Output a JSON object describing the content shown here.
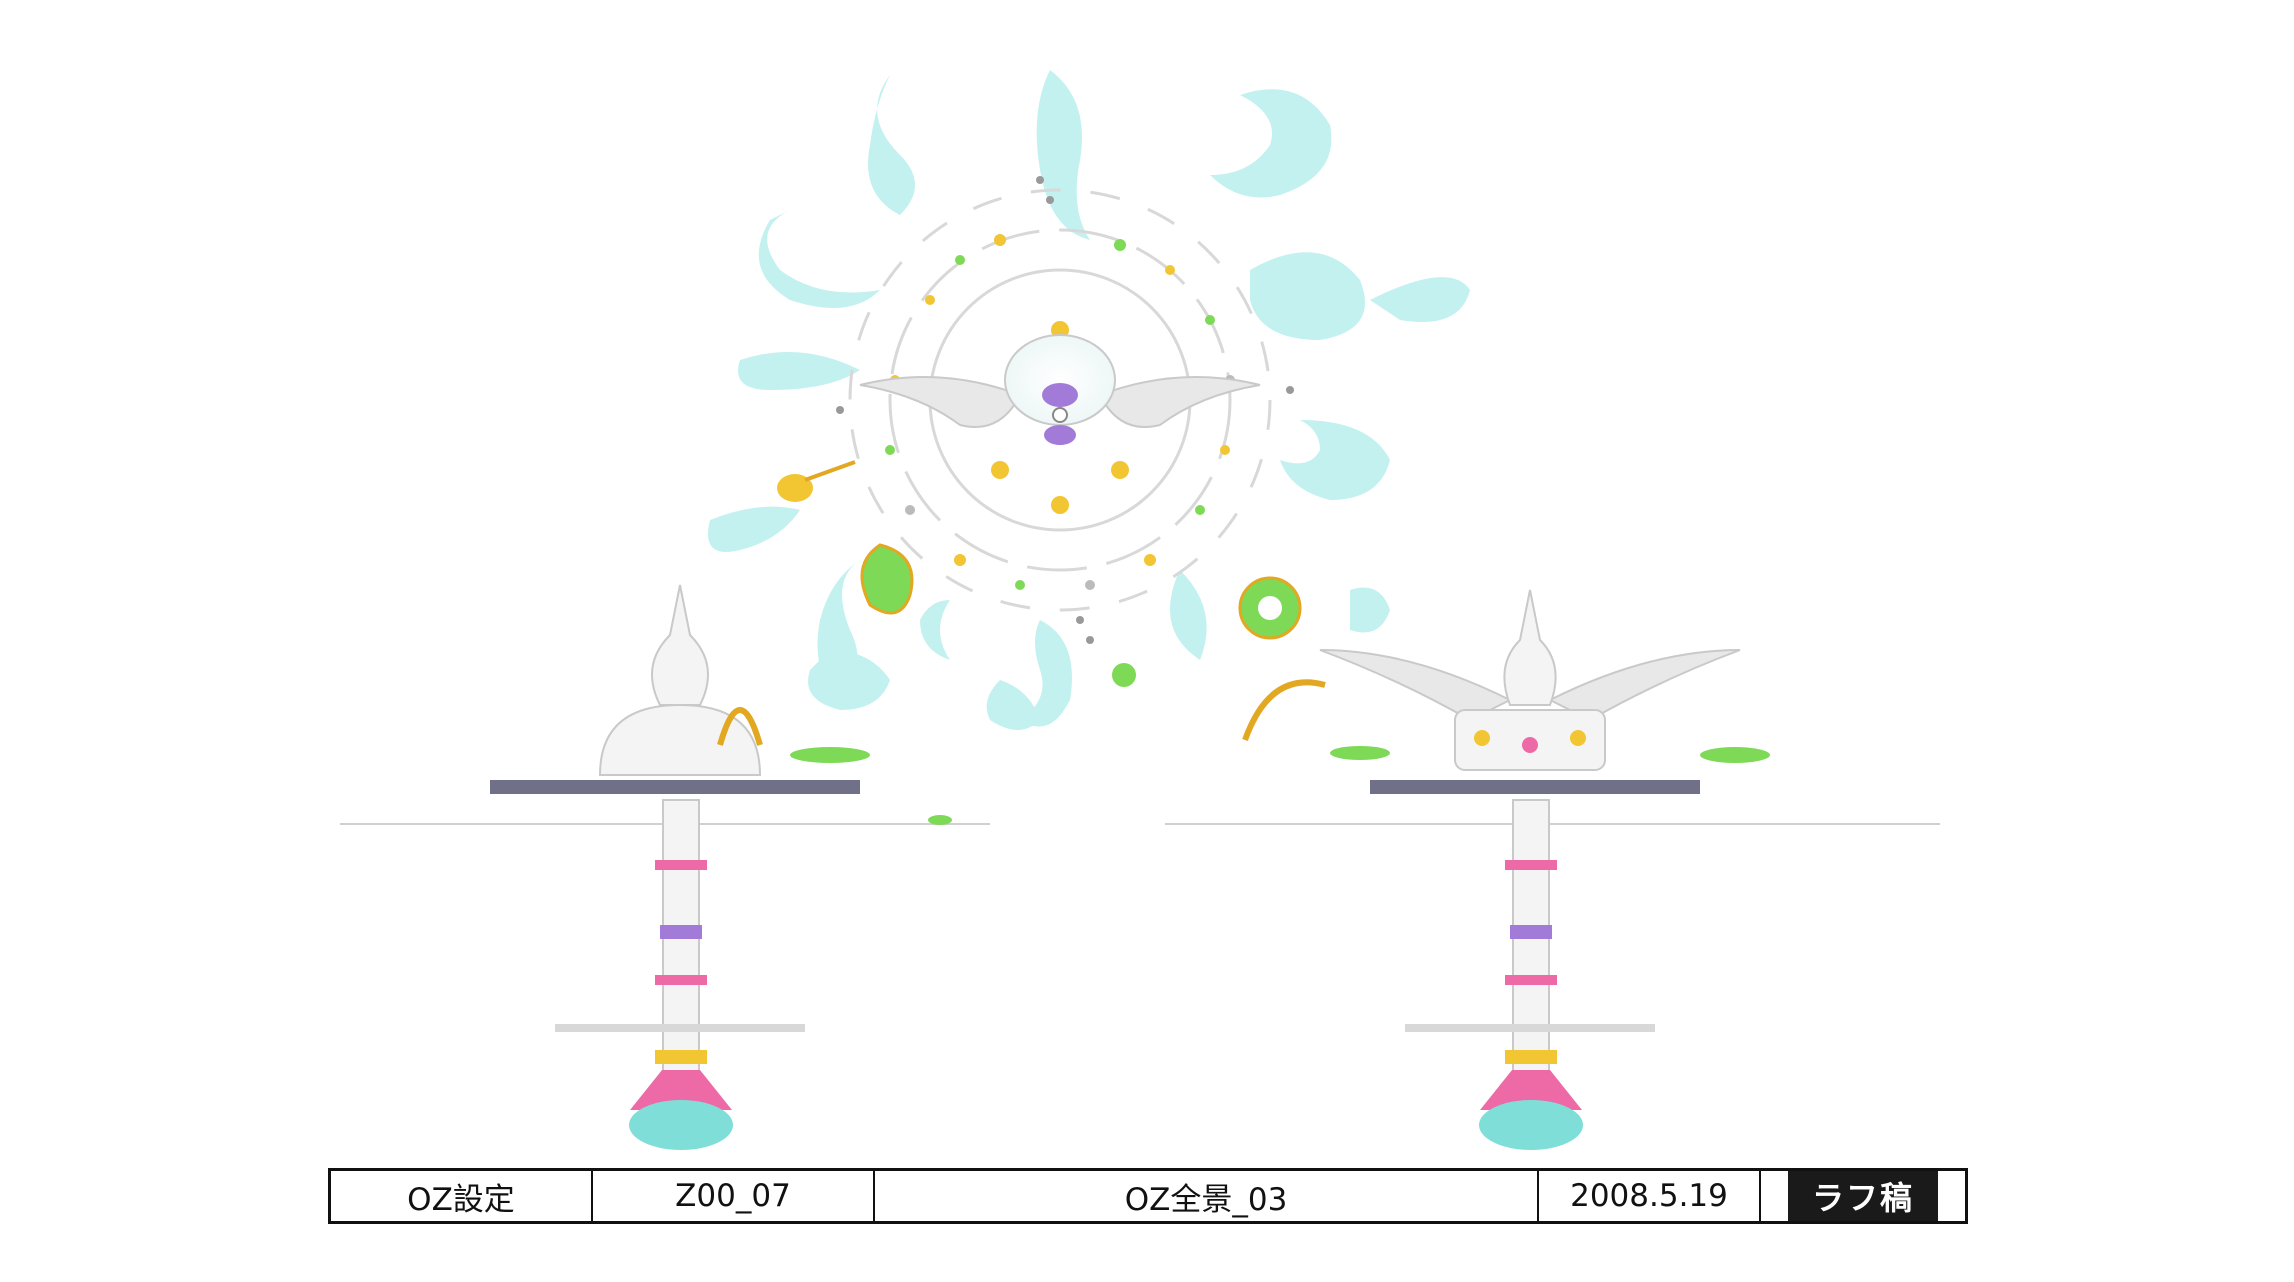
{
  "title_block": {
    "project": "OZ設定",
    "code": "Z00_07",
    "name": "OZ全景_03",
    "date": "2008.5.19",
    "status": "ラフ稿"
  },
  "artwork": {
    "subject": "oz-world-illustration",
    "colors": {
      "cloud": "#bdf0ee",
      "gold": "#f2c632",
      "green": "#7ed957",
      "pink": "#ee6aa7",
      "purple": "#a27bd8",
      "teal": "#7fded8",
      "wing": "#e8e8e8"
    }
  }
}
